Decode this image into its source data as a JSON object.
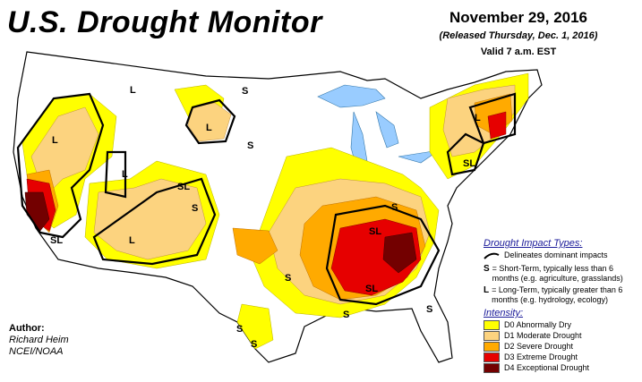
{
  "header": {
    "title": "U.S. Drought Monitor",
    "date": "November 29, 2016",
    "released": "(Released Thursday, Dec. 1, 2016)",
    "valid": "Valid 7 a.m. EST"
  },
  "author": {
    "label": "Author:",
    "name": "Richard Heim",
    "org": "NCEI/NOAA"
  },
  "legend": {
    "impact_title": "Drought Impact Types:",
    "delineates": "Delineates dominant impacts",
    "s_key": "S",
    "s_text": "= Short-Term, typically less than 6 months (e.g. agriculture, grasslands)",
    "l_key": "L",
    "l_text": "= Long-Term, typically greater than 6 months (e.g. hydrology, ecology)",
    "intensity_title": "Intensity:",
    "intensity": [
      {
        "label": "D0 Abnormally Dry",
        "color": "#ffff00"
      },
      {
        "label": "D1 Moderate Drought",
        "color": "#fcd37f"
      },
      {
        "label": "D2 Severe Drought",
        "color": "#ffaa00"
      },
      {
        "label": "D3 Extreme Drought",
        "color": "#e60000"
      },
      {
        "label": "D4 Exceptional Drought",
        "color": "#730000"
      }
    ]
  },
  "colors": {
    "water": "#99ccff",
    "land": "#ffffff",
    "d0": "#ffff00",
    "d1": "#fcd37f",
    "d2": "#ffaa00",
    "d3": "#e60000",
    "d4": "#730000"
  },
  "map_labels": {
    "S": "S",
    "L": "L",
    "SL": "SL"
  }
}
